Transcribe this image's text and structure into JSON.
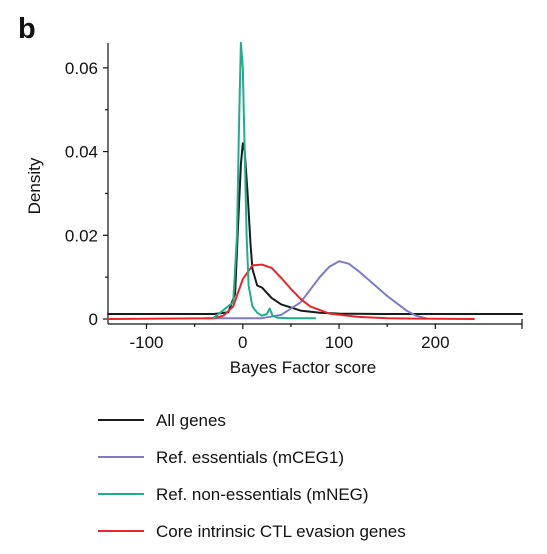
{
  "panel_label": "b",
  "chart_data": {
    "type": "line",
    "title": "",
    "xlabel": "Bayes Factor score",
    "ylabel": "Density",
    "xlim": [
      -140,
      290
    ],
    "ylim": [
      0,
      0.07
    ],
    "xticks": [
      {
        "value": -100,
        "label": "-100"
      },
      {
        "value": 0,
        "label": "0"
      },
      {
        "value": 100,
        "label": "100"
      },
      {
        "value": 200,
        "label": "200"
      }
    ],
    "yticks": [
      {
        "value": 0,
        "label": "0"
      },
      {
        "value": 0.02,
        "label": "0.02"
      },
      {
        "value": 0.04,
        "label": "0.04"
      },
      {
        "value": 0.06,
        "label": "0.06"
      }
    ],
    "legend_position": "bottom",
    "grid": false,
    "series": [
      {
        "name": "All genes",
        "color": "#1a1a1a",
        "x": [
          -140,
          -30,
          -15,
          -8,
          -5,
          -2,
          0,
          2,
          5,
          8,
          10,
          15,
          20,
          30,
          40,
          60,
          80,
          100,
          150,
          200,
          290
        ],
        "y": [
          0.0012,
          0.0012,
          0.0016,
          0.006,
          0.022,
          0.037,
          0.042,
          0.04,
          0.03,
          0.018,
          0.012,
          0.008,
          0.0075,
          0.005,
          0.0035,
          0.002,
          0.0015,
          0.0013,
          0.0012,
          0.0012,
          0.0012
        ]
      },
      {
        "name": "Ref. essentials (mCEG1)",
        "color": "#7b7bc8",
        "x": [
          -40,
          20,
          40,
          60,
          70,
          80,
          90,
          100,
          110,
          120,
          130,
          150,
          170,
          180,
          190
        ],
        "y": [
          0.0002,
          0.0002,
          0.001,
          0.004,
          0.007,
          0.01,
          0.0125,
          0.0138,
          0.0132,
          0.0115,
          0.0095,
          0.0055,
          0.002,
          0.0008,
          0.0002
        ]
      },
      {
        "name": "Ref. non-essentials (mNEG)",
        "color": "#1fae8c",
        "x": [
          -30,
          -10,
          -6,
          -4,
          -2,
          0,
          2,
          4,
          6,
          10,
          15,
          20,
          25,
          28,
          31,
          36,
          50,
          75
        ],
        "y": [
          0.0003,
          0.004,
          0.02,
          0.045,
          0.066,
          0.06,
          0.04,
          0.02,
          0.008,
          0.003,
          0.0015,
          0.0008,
          0.0012,
          0.0025,
          0.0008,
          0.0003,
          0.0002,
          0.0002
        ]
      },
      {
        "name": "Core intrinsic CTL evasion genes",
        "color": "#e8262a",
        "x": [
          -140,
          -30,
          -20,
          -10,
          0,
          10,
          20,
          30,
          40,
          50,
          60,
          70,
          90,
          120,
          150,
          180,
          240
        ],
        "y": [
          0,
          0.0002,
          0.0008,
          0.003,
          0.0095,
          0.0128,
          0.013,
          0.0122,
          0.0098,
          0.0072,
          0.0048,
          0.003,
          0.0013,
          0.0005,
          0.0002,
          0.0001,
          0
        ]
      }
    ]
  }
}
